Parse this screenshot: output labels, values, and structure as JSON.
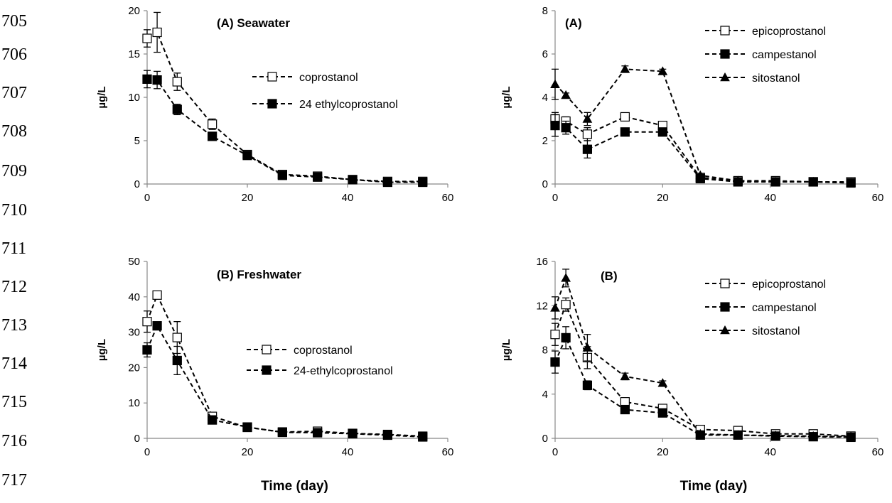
{
  "line_numbers": [
    "705",
    "706",
    "707",
    "708",
    "709",
    "710",
    "711",
    "712",
    "713",
    "714",
    "715",
    "716",
    "717"
  ],
  "colors": {
    "axis": "#888888",
    "series": "#000000",
    "hollow": "#ffffff"
  },
  "chart_data": [
    {
      "type": "line",
      "title": "(A) Seawater",
      "xlabel": "",
      "ylabel": "µg/L",
      "xlim": [
        0,
        60
      ],
      "ylim": [
        0,
        20
      ],
      "xticks": [
        "0",
        "20",
        "40",
        "60"
      ],
      "yticks": [
        "0",
        "5",
        "10",
        "15",
        "20"
      ],
      "legend_position": "right",
      "series": [
        {
          "name": "coprostanol",
          "marker": "square-open",
          "x": [
            0,
            2,
            6,
            13,
            20,
            27,
            34,
            41,
            48,
            55
          ],
          "y": [
            16.8,
            17.5,
            11.8,
            6.9,
            3.4,
            1.1,
            0.9,
            0.5,
            0.3,
            0.3
          ],
          "err": [
            1,
            2.3,
            1,
            0.6,
            0.3,
            0.1,
            0.1,
            0.1,
            0.05,
            0.05
          ]
        },
        {
          "name": "24 ethylcoprostanol",
          "marker": "square-filled",
          "x": [
            0,
            2,
            6,
            13,
            20,
            27,
            34,
            41,
            48,
            55
          ],
          "y": [
            12.1,
            12.0,
            8.6,
            5.5,
            3.3,
            1.0,
            0.8,
            0.5,
            0.2,
            0.2
          ],
          "err": [
            1,
            1,
            0.6,
            0.4,
            0.3,
            0.1,
            0.1,
            0.1,
            0.05,
            0.05
          ]
        }
      ]
    },
    {
      "type": "line",
      "title": "(A)",
      "xlabel": "",
      "ylabel": "µg/L",
      "xlim": [
        0,
        60
      ],
      "ylim": [
        0,
        8
      ],
      "xticks": [
        "0",
        "20",
        "40",
        "60"
      ],
      "yticks": [
        "0",
        "2",
        "4",
        "6",
        "8"
      ],
      "legend_position": "top-right",
      "series": [
        {
          "name": "epicoprostanol",
          "marker": "square-open",
          "x": [
            0,
            2,
            6,
            13,
            20,
            27,
            34,
            41,
            48,
            55
          ],
          "y": [
            3.0,
            2.9,
            2.3,
            3.1,
            2.7,
            0.3,
            0.15,
            0.15,
            0.1,
            0.1
          ],
          "err": [
            0.3,
            0.2,
            0.3,
            0.15,
            0.1,
            0.05,
            0.03,
            0.03,
            0.02,
            0.02
          ]
        },
        {
          "name": "campestanol",
          "marker": "square-filled",
          "x": [
            0,
            2,
            6,
            13,
            20,
            27,
            34,
            41,
            48,
            55
          ],
          "y": [
            2.7,
            2.6,
            1.6,
            2.4,
            2.4,
            0.25,
            0.1,
            0.1,
            0.1,
            0.05
          ],
          "err": [
            0.5,
            0.3,
            0.4,
            0.1,
            0.15,
            0.05,
            0.02,
            0.02,
            0.02,
            0.02
          ]
        },
        {
          "name": "sitostanol",
          "marker": "triangle-filled",
          "x": [
            0,
            2,
            6,
            13,
            20,
            27,
            34,
            41,
            48,
            55
          ],
          "y": [
            4.6,
            4.1,
            3.0,
            5.3,
            5.2,
            0.4,
            0.15,
            0.1,
            0.1,
            0.05
          ],
          "err": [
            0.7,
            0.1,
            0.3,
            0.15,
            0.1,
            0.05,
            0.03,
            0.02,
            0.02,
            0.02
          ]
        }
      ]
    },
    {
      "type": "line",
      "title": "(B) Freshwater",
      "xlabel": "Time (day)",
      "ylabel": "µg/L",
      "xlim": [
        0,
        60
      ],
      "ylim": [
        0,
        50
      ],
      "xticks": [
        "0",
        "20",
        "40",
        "60"
      ],
      "yticks": [
        "0",
        "10",
        "20",
        "30",
        "40",
        "50"
      ],
      "legend_position": "right",
      "series": [
        {
          "name": "coprostanol",
          "marker": "square-open",
          "x": [
            0,
            2,
            6,
            13,
            20,
            27,
            34,
            41,
            48,
            55
          ],
          "y": [
            33,
            40.5,
            28.5,
            6.2,
            3.1,
            1.8,
            2.0,
            1.4,
            1.1,
            0.6
          ],
          "err": [
            3,
            1,
            4.5,
            0.5,
            0.3,
            0.2,
            0.2,
            0.2,
            0.1,
            0.1
          ]
        },
        {
          "name": "24-ethylcoprostanol",
          "marker": "square-filled",
          "x": [
            0,
            2,
            6,
            13,
            20,
            27,
            34,
            41,
            48,
            55
          ],
          "y": [
            25,
            31.8,
            22,
            5.2,
            3.2,
            1.7,
            1.6,
            1.3,
            0.9,
            0.4
          ],
          "err": [
            2,
            0.8,
            4,
            0.4,
            0.3,
            0.2,
            0.2,
            0.2,
            0.1,
            0.1
          ]
        }
      ]
    },
    {
      "type": "line",
      "title": "(B)",
      "xlabel": "Time (day)",
      "ylabel": "µg/L",
      "xlim": [
        0,
        60
      ],
      "ylim": [
        0,
        16
      ],
      "xticks": [
        "0",
        "20",
        "40",
        "60"
      ],
      "yticks": [
        "0",
        "4",
        "8",
        "12",
        "16"
      ],
      "legend_position": "top-right",
      "series": [
        {
          "name": "epicoprostanol",
          "marker": "square-open",
          "x": [
            0,
            2,
            6,
            13,
            20,
            27,
            34,
            41,
            48,
            55
          ],
          "y": [
            9.4,
            12.1,
            7.3,
            3.3,
            2.7,
            0.8,
            0.7,
            0.4,
            0.4,
            0.2
          ],
          "err": [
            1,
            0.6,
            1,
            0.3,
            0.3,
            0.1,
            0.1,
            0.1,
            0.1,
            0.05
          ]
        },
        {
          "name": "campestanol",
          "marker": "square-filled",
          "x": [
            0,
            2,
            6,
            13,
            20,
            27,
            34,
            41,
            48,
            55
          ],
          "y": [
            6.9,
            9.1,
            4.8,
            2.6,
            2.3,
            0.3,
            0.3,
            0.2,
            0.15,
            0.1
          ],
          "err": [
            1,
            1,
            0.4,
            0.2,
            0.2,
            0.05,
            0.05,
            0.05,
            0.05,
            0.05
          ]
        },
        {
          "name": "sitostanol",
          "marker": "triangle-filled",
          "x": [
            0,
            2,
            6,
            13,
            20,
            27,
            34,
            41,
            48,
            55
          ],
          "y": [
            11.8,
            14.5,
            8.2,
            5.6,
            5.0,
            0.4,
            0.3,
            0.25,
            0.2,
            0.15
          ],
          "err": [
            1,
            0.8,
            1.2,
            0.3,
            0.2,
            0.05,
            0.05,
            0.05,
            0.05,
            0.05
          ]
        }
      ]
    }
  ]
}
